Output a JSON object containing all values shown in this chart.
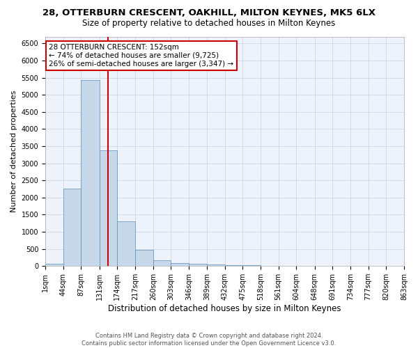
{
  "title1": "28, OTTERBURN CRESCENT, OAKHILL, MILTON KEYNES, MK5 6LX",
  "title2": "Size of property relative to detached houses in Milton Keynes",
  "xlabel": "Distribution of detached houses by size in Milton Keynes",
  "ylabel": "Number of detached properties",
  "footer1": "Contains HM Land Registry data © Crown copyright and database right 2024.",
  "footer2": "Contains public sector information licensed under the Open Government Licence v3.0.",
  "bar_color": "#c8d8eb",
  "bar_edge_color": "#5b8db8",
  "grid_color": "#c8d0e0",
  "bg_color": "#eef2fa",
  "vline_color": "#cc0000",
  "annotation_text": "28 OTTERBURN CRESCENT: 152sqm\n← 74% of detached houses are smaller (9,725)\n26% of semi-detached houses are larger (3,347) →",
  "annotation_box_edgecolor": "#cc0000",
  "property_size": 152,
  "bin_edges": [
    1,
    44,
    87,
    131,
    174,
    217,
    260,
    303,
    346,
    389,
    432,
    475,
    518,
    561,
    604,
    648,
    691,
    734,
    777,
    820,
    863
  ],
  "bar_heights": [
    75,
    2270,
    5420,
    3380,
    1310,
    480,
    160,
    90,
    65,
    45,
    30,
    20,
    12,
    8,
    6,
    4,
    3,
    2,
    1,
    1
  ],
  "ylim": [
    0,
    6700
  ],
  "yticks": [
    0,
    500,
    1000,
    1500,
    2000,
    2500,
    3000,
    3500,
    4000,
    4500,
    5000,
    5500,
    6000,
    6500
  ],
  "title1_fontsize": 9.5,
  "title2_fontsize": 8.5,
  "xlabel_fontsize": 8.5,
  "ylabel_fontsize": 8,
  "tick_fontsize": 7,
  "annot_fontsize": 7.5,
  "footer_fontsize": 6
}
